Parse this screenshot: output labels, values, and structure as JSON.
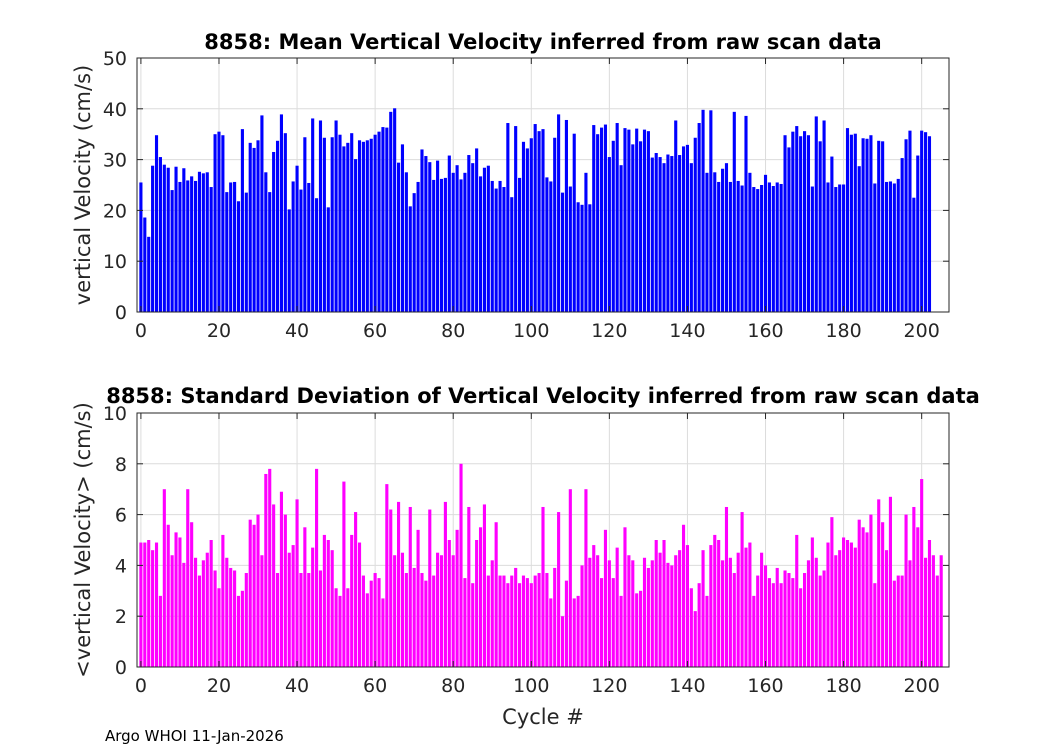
{
  "footer": "Argo WHOI 11-Jan-2026",
  "chart_data": [
    {
      "type": "bar",
      "title": "8858: Mean Vertical Velocity inferred from raw scan data",
      "xlabel": "",
      "ylabel": "vertical Velocity (cm/s)",
      "xlim": [
        -1,
        207
      ],
      "ylim": [
        0,
        50
      ],
      "xticks": [
        0,
        20,
        40,
        60,
        80,
        100,
        120,
        140,
        160,
        180,
        200
      ],
      "yticks": [
        0,
        10,
        20,
        30,
        40,
        50
      ],
      "grid": true,
      "color": "#0000ff",
      "x_start": 0,
      "values": [
        25.5,
        18.6,
        14.8,
        28.8,
        34.8,
        30.5,
        29.0,
        28.4,
        24.0,
        28.6,
        25.6,
        28.3,
        25.9,
        26.7,
        25.8,
        27.6,
        27.3,
        27.5,
        24.6,
        35.0,
        35.5,
        34.8,
        23.6,
        25.5,
        25.6,
        21.8,
        36.0,
        23.5,
        33.3,
        32.3,
        33.8,
        38.7,
        27.5,
        23.6,
        31.5,
        33.7,
        38.9,
        35.2,
        20.2,
        25.7,
        28.8,
        24.1,
        34.4,
        25.4,
        38.1,
        22.4,
        37.7,
        34.3,
        20.6,
        34.4,
        37.7,
        34.9,
        32.6,
        33.3,
        35.2,
        30.1,
        33.8,
        33.5,
        33.8,
        34.1,
        34.9,
        35.5,
        36.4,
        36.3,
        39.4,
        40.1,
        29.4,
        33.0,
        27.5,
        20.8,
        23.4,
        25.6,
        32.0,
        30.7,
        29.5,
        26.0,
        29.8,
        26.2,
        26.4,
        30.8,
        27.4,
        28.9,
        26.1,
        27.4,
        30.9,
        29.3,
        32.2,
        26.7,
        28.4,
        28.8,
        25.8,
        24.3,
        25.8,
        24.6,
        37.2,
        22.6,
        36.6,
        26.4,
        33.5,
        32.2,
        34.2,
        37.0,
        35.6,
        36.0,
        26.5,
        25.7,
        34.3,
        38.9,
        23.5,
        37.8,
        24.7,
        35.1,
        21.6,
        21.1,
        27.4,
        21.2,
        36.8,
        35.0,
        36.3,
        36.9,
        30.5,
        33.7,
        37.2,
        28.9,
        36.2,
        35.9,
        33.0,
        36.1,
        33.6,
        35.9,
        35.6,
        30.4,
        31.3,
        30.5,
        29.3,
        31.0,
        30.7,
        37.7,
        30.9,
        32.6,
        32.9,
        29.3,
        34.3,
        37.2,
        39.8,
        27.4,
        39.7,
        27.5,
        25.6,
        28.2,
        29.3,
        25.6,
        39.4,
        25.8,
        24.9,
        38.6,
        27.4,
        24.6,
        24.2,
        25.0,
        27.0,
        25.5,
        24.8,
        25.5,
        25.2,
        34.8,
        32.4,
        35.5,
        36.6,
        34.6,
        35.6,
        34.8,
        24.7,
        38.5,
        33.6,
        37.7,
        25.5,
        30.6,
        24.6,
        25.1,
        25.1,
        36.2,
        34.9,
        35.1,
        28.7,
        34.2,
        34.1,
        34.8,
        25.3,
        33.7,
        33.6,
        25.6,
        25.7,
        25.3,
        26.2,
        30.3,
        34.0,
        35.7,
        22.5,
        30.8,
        35.7,
        35.4,
        34.6
      ]
    },
    {
      "type": "bar",
      "title": "8858: Standard Deviation of Vertical Velocity inferred from raw scan data",
      "xlabel": "Cycle #",
      "ylabel": "<vertical Velocity> (cm/s)",
      "xlim": [
        -1,
        207
      ],
      "ylim": [
        0,
        10
      ],
      "xticks": [
        0,
        20,
        40,
        60,
        80,
        100,
        120,
        140,
        160,
        180,
        200
      ],
      "yticks": [
        0,
        2,
        4,
        6,
        8,
        10
      ],
      "grid": true,
      "color": "#ff00ff",
      "x_start": 0,
      "values": [
        4.9,
        4.9,
        5.0,
        4.6,
        4.9,
        2.8,
        7.0,
        5.6,
        4.4,
        5.3,
        5.1,
        4.1,
        7.0,
        5.7,
        4.3,
        3.6,
        4.2,
        4.5,
        5.0,
        3.8,
        3.1,
        5.2,
        4.3,
        3.9,
        3.8,
        2.8,
        3.0,
        3.7,
        5.8,
        5.6,
        6.0,
        4.4,
        7.6,
        7.8,
        6.4,
        3.7,
        6.9,
        6.0,
        4.5,
        4.8,
        6.6,
        3.7,
        5.5,
        3.7,
        4.7,
        7.8,
        3.8,
        5.2,
        5.0,
        4.6,
        3.1,
        2.8,
        7.3,
        3.1,
        5.2,
        6.1,
        4.9,
        3.6,
        2.9,
        3.4,
        3.7,
        3.5,
        2.7,
        7.2,
        6.2,
        4.4,
        6.5,
        4.5,
        3.7,
        6.3,
        3.9,
        5.4,
        3.7,
        3.4,
        6.2,
        3.6,
        4.5,
        4.4,
        6.5,
        5.0,
        4.4,
        5.4,
        8.0,
        3.5,
        6.3,
        3.3,
        5.0,
        5.5,
        6.4,
        3.6,
        4.2,
        5.7,
        3.6,
        3.6,
        3.3,
        3.6,
        3.9,
        3.3,
        3.6,
        3.5,
        3.3,
        3.6,
        3.7,
        6.3,
        3.7,
        2.7,
        3.9,
        6.1,
        2.0,
        3.4,
        7.0,
        2.7,
        2.8,
        4.0,
        7.0,
        4.3,
        4.8,
        4.4,
        3.5,
        5.4,
        4.2,
        3.5,
        4.7,
        2.8,
        5.5,
        4.4,
        4.2,
        2.9,
        3.0,
        4.3,
        3.9,
        4.2,
        5.0,
        4.5,
        5.0,
        4.1,
        4.0,
        4.4,
        4.6,
        5.6,
        4.8,
        3.1,
        2.2,
        3.3,
        4.6,
        2.8,
        4.8,
        5.2,
        5.0,
        4.2,
        6.3,
        4.3,
        3.7,
        4.5,
        6.1,
        4.7,
        4.9,
        2.8,
        3.6,
        4.5,
        4.0,
        3.5,
        3.3,
        3.9,
        3.3,
        3.8,
        3.7,
        3.5,
        5.2,
        3.1,
        3.7,
        4.2,
        5.1,
        4.3,
        3.6,
        3.8,
        4.9,
        5.9,
        4.4,
        4.6,
        5.1,
        5.0,
        4.9,
        4.7,
        5.8,
        5.5,
        5.3,
        6.0,
        3.3,
        6.6,
        5.7,
        4.6,
        6.7,
        3.4,
        3.6,
        3.6,
        6.0,
        4.2,
        6.3,
        5.5,
        7.4,
        4.3,
        5.0,
        4.4,
        3.6,
        4.4
      ]
    }
  ]
}
